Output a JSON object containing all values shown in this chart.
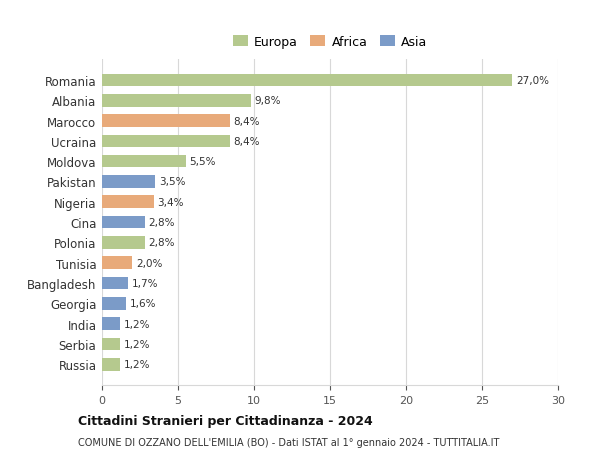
{
  "countries": [
    "Romania",
    "Albania",
    "Marocco",
    "Ucraina",
    "Moldova",
    "Pakistan",
    "Nigeria",
    "Cina",
    "Polonia",
    "Tunisia",
    "Bangladesh",
    "Georgia",
    "India",
    "Serbia",
    "Russia"
  ],
  "values": [
    27.0,
    9.8,
    8.4,
    8.4,
    5.5,
    3.5,
    3.4,
    2.8,
    2.8,
    2.0,
    1.7,
    1.6,
    1.2,
    1.2,
    1.2
  ],
  "labels": [
    "27,0%",
    "9,8%",
    "8,4%",
    "8,4%",
    "5,5%",
    "3,5%",
    "3,4%",
    "2,8%",
    "2,8%",
    "2,0%",
    "1,7%",
    "1,6%",
    "1,2%",
    "1,2%",
    "1,2%"
  ],
  "continents": [
    "Europa",
    "Europa",
    "Africa",
    "Europa",
    "Europa",
    "Asia",
    "Africa",
    "Asia",
    "Europa",
    "Africa",
    "Asia",
    "Asia",
    "Asia",
    "Europa",
    "Europa"
  ],
  "colors": {
    "Europa": "#b5c98e",
    "Africa": "#e8aa7a",
    "Asia": "#7b9bc8"
  },
  "xlim": [
    0,
    30
  ],
  "xticks": [
    0,
    5,
    10,
    15,
    20,
    25,
    30
  ],
  "title": "Cittadini Stranieri per Cittadinanza - 2024",
  "subtitle": "COMUNE DI OZZANO DELL'EMILIA (BO) - Dati ISTAT al 1° gennaio 2024 - TUTTITALIA.IT",
  "legend_labels": [
    "Europa",
    "Africa",
    "Asia"
  ],
  "background_color": "#ffffff",
  "grid_color": "#d8d8d8"
}
